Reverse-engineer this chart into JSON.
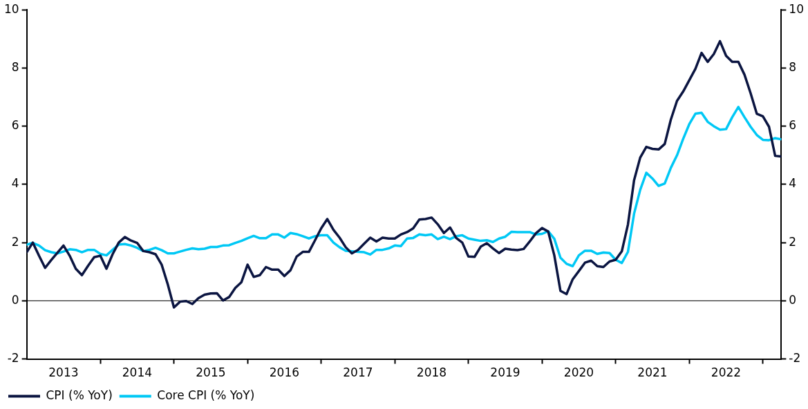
{
  "chart_data": {
    "type": "line",
    "x": [
      "2013-01",
      "2013-02",
      "2013-03",
      "2013-04",
      "2013-05",
      "2013-06",
      "2013-07",
      "2013-08",
      "2013-09",
      "2013-10",
      "2013-11",
      "2013-12",
      "2014-01",
      "2014-02",
      "2014-03",
      "2014-04",
      "2014-05",
      "2014-06",
      "2014-07",
      "2014-08",
      "2014-09",
      "2014-10",
      "2014-11",
      "2014-12",
      "2015-01",
      "2015-02",
      "2015-03",
      "2015-04",
      "2015-05",
      "2015-06",
      "2015-07",
      "2015-08",
      "2015-09",
      "2015-10",
      "2015-11",
      "2015-12",
      "2016-01",
      "2016-02",
      "2016-03",
      "2016-04",
      "2016-05",
      "2016-06",
      "2016-07",
      "2016-08",
      "2016-09",
      "2016-10",
      "2016-11",
      "2016-12",
      "2017-01",
      "2017-02",
      "2017-03",
      "2017-04",
      "2017-05",
      "2017-06",
      "2017-07",
      "2017-08",
      "2017-09",
      "2017-10",
      "2017-11",
      "2017-12",
      "2018-01",
      "2018-02",
      "2018-03",
      "2018-04",
      "2018-05",
      "2018-06",
      "2018-07",
      "2018-08",
      "2018-09",
      "2018-10",
      "2018-11",
      "2018-12",
      "2019-01",
      "2019-02",
      "2019-03",
      "2019-04",
      "2019-05",
      "2019-06",
      "2019-07",
      "2019-08",
      "2019-09",
      "2019-10",
      "2019-11",
      "2019-12",
      "2020-01",
      "2020-02",
      "2020-03",
      "2020-04",
      "2020-05",
      "2020-06",
      "2020-07",
      "2020-08",
      "2020-09",
      "2020-10",
      "2020-11",
      "2020-12",
      "2021-01",
      "2021-02",
      "2021-03",
      "2021-04",
      "2021-05",
      "2021-06",
      "2021-07",
      "2021-08",
      "2021-09",
      "2021-10",
      "2021-11",
      "2021-12",
      "2022-01",
      "2022-02",
      "2022-03",
      "2022-04",
      "2022-05",
      "2022-06",
      "2022-07",
      "2022-08",
      "2022-09",
      "2022-10",
      "2022-11",
      "2022-12",
      "2023-01",
      "2023-02",
      "2023-03",
      "2023-04"
    ],
    "xlim": [
      "2013-01",
      "2023-04"
    ],
    "xticks": [
      {
        "value": "2013-07",
        "label": "2013"
      },
      {
        "value": "2014-01",
        "label": null
      },
      {
        "value": "2014-07",
        "label": "2014"
      },
      {
        "value": "2015-01",
        "label": null
      },
      {
        "value": "2015-07",
        "label": "2015"
      },
      {
        "value": "2016-01",
        "label": null
      },
      {
        "value": "2016-07",
        "label": "2016"
      },
      {
        "value": "2017-01",
        "label": null
      },
      {
        "value": "2017-07",
        "label": "2017"
      },
      {
        "value": "2018-01",
        "label": null
      },
      {
        "value": "2018-07",
        "label": "2018"
      },
      {
        "value": "2019-01",
        "label": null
      },
      {
        "value": "2019-07",
        "label": "2019"
      },
      {
        "value": "2020-01",
        "label": null
      },
      {
        "value": "2020-07",
        "label": "2020"
      },
      {
        "value": "2021-01",
        "label": null
      },
      {
        "value": "2021-07",
        "label": "2021"
      },
      {
        "value": "2022-01",
        "label": null
      },
      {
        "value": "2022-07",
        "label": "2022"
      },
      {
        "value": "2023-01",
        "label": null
      }
    ],
    "ylim": [
      -2,
      10
    ],
    "yticks": [
      -2,
      0,
      2,
      4,
      6,
      8,
      10
    ],
    "y2lim": [
      -2,
      10
    ],
    "y2ticks": [
      -2,
      0,
      2,
      4,
      6,
      8,
      10
    ],
    "grid": false,
    "legend": "bottom left",
    "marker": "none",
    "line_style": "solid",
    "ref_lines": [
      {
        "axis": "y",
        "value": 0,
        "color": "#000000"
      }
    ],
    "series": [
      {
        "name": "CPI (% YoY)",
        "color": "#0b1541",
        "values": [
          1.67,
          2.0,
          1.55,
          1.13,
          1.4,
          1.65,
          1.9,
          1.55,
          1.1,
          0.88,
          1.2,
          1.5,
          1.55,
          1.1,
          1.6,
          2.0,
          2.19,
          2.07,
          1.99,
          1.71,
          1.67,
          1.6,
          1.24,
          0.56,
          -0.23,
          -0.03,
          -0.01,
          -0.11,
          0.09,
          0.21,
          0.25,
          0.26,
          0.01,
          0.13,
          0.44,
          0.64,
          1.24,
          0.82,
          0.88,
          1.16,
          1.07,
          1.07,
          0.85,
          1.05,
          1.52,
          1.68,
          1.68,
          2.08,
          2.49,
          2.81,
          2.44,
          2.17,
          1.84,
          1.63,
          1.75,
          1.96,
          2.17,
          2.04,
          2.17,
          2.14,
          2.14,
          2.28,
          2.36,
          2.49,
          2.79,
          2.81,
          2.86,
          2.63,
          2.33,
          2.52,
          2.16,
          2.0,
          1.52,
          1.51,
          1.86,
          1.98,
          1.8,
          1.64,
          1.79,
          1.76,
          1.74,
          1.78,
          2.04,
          2.32,
          2.5,
          2.38,
          1.56,
          0.34,
          0.23,
          0.74,
          1.02,
          1.31,
          1.38,
          1.19,
          1.16,
          1.35,
          1.41,
          1.7,
          2.62,
          4.14,
          4.92,
          5.29,
          5.22,
          5.2,
          5.39,
          6.23,
          6.87,
          7.19,
          7.58,
          7.97,
          8.52,
          8.21,
          8.48,
          8.92,
          8.42,
          8.21,
          8.21,
          7.77,
          7.13,
          6.43,
          6.34,
          5.98,
          4.98,
          4.96
        ]
      },
      {
        "name": "Core CPI (% YoY)",
        "color": "#00c8f5",
        "values": [
          1.93,
          1.99,
          1.9,
          1.74,
          1.67,
          1.63,
          1.69,
          1.77,
          1.75,
          1.67,
          1.75,
          1.75,
          1.61,
          1.56,
          1.75,
          1.93,
          1.95,
          1.9,
          1.82,
          1.71,
          1.75,
          1.82,
          1.74,
          1.63,
          1.63,
          1.69,
          1.75,
          1.8,
          1.77,
          1.79,
          1.85,
          1.85,
          1.9,
          1.91,
          1.99,
          2.06,
          2.15,
          2.23,
          2.15,
          2.15,
          2.28,
          2.28,
          2.17,
          2.33,
          2.29,
          2.22,
          2.14,
          2.22,
          2.25,
          2.25,
          2.0,
          1.84,
          1.72,
          1.7,
          1.68,
          1.67,
          1.59,
          1.75,
          1.75,
          1.8,
          1.9,
          1.88,
          2.14,
          2.16,
          2.28,
          2.25,
          2.28,
          2.12,
          2.2,
          2.12,
          2.22,
          2.25,
          2.14,
          2.1,
          2.06,
          2.08,
          2.02,
          2.14,
          2.2,
          2.37,
          2.36,
          2.36,
          2.36,
          2.28,
          2.3,
          2.39,
          2.13,
          1.48,
          1.27,
          1.19,
          1.56,
          1.72,
          1.72,
          1.61,
          1.66,
          1.64,
          1.41,
          1.3,
          1.68,
          2.99,
          3.81,
          4.4,
          4.2,
          3.95,
          4.03,
          4.57,
          5.0,
          5.56,
          6.07,
          6.43,
          6.46,
          6.15,
          6.0,
          5.88,
          5.9,
          6.31,
          6.66,
          6.31,
          5.98,
          5.7,
          5.53,
          5.52,
          5.59,
          5.55
        ]
      }
    ]
  }
}
